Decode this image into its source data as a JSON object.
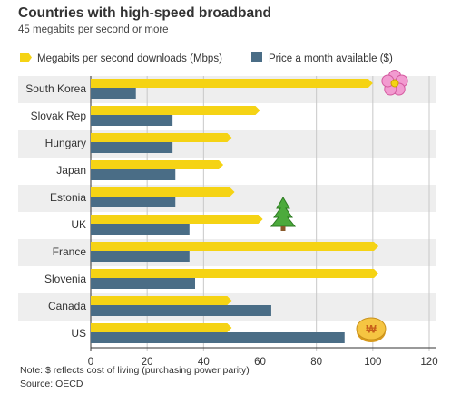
{
  "chart_data": {
    "type": "bar",
    "title": "Countries with high-speed broadband",
    "subtitle": "45 megabits per second or more",
    "categories": [
      "South Korea",
      "Slovak Rep",
      "Hungary",
      "Japan",
      "Estonia",
      "UK",
      "France",
      "Slovenia",
      "Canada",
      "US"
    ],
    "series": [
      {
        "name": "Megabits per second downloads (Mbps)",
        "color": "#f5d314",
        "values": [
          100,
          60,
          50,
          47,
          51,
          61,
          102,
          102,
          50,
          50
        ]
      },
      {
        "name": "Price a month available ($)",
        "color": "#4a6d86",
        "values": [
          16,
          29,
          29,
          30,
          30,
          35,
          35,
          37,
          64,
          90
        ]
      }
    ],
    "xlim": [
      0,
      120
    ],
    "xticks": [
      "0",
      "20",
      "40",
      "60",
      "80",
      "100",
      "120"
    ],
    "grid": true,
    "legend_position": "top",
    "icons": [
      "flower-icon",
      "tree-icon",
      "coin-icon"
    ]
  },
  "notes": {
    "note": "Note: $ reflects cost of living (purchasing power parity)",
    "source": "Source: OECD"
  }
}
